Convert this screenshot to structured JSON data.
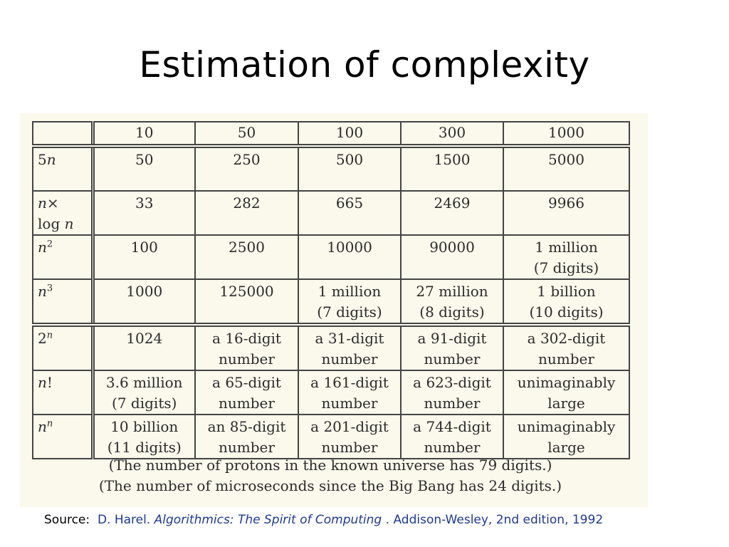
{
  "title": "Estimation of complexity",
  "table": {
    "header": [
      "10",
      "50",
      "100",
      "300",
      "1000"
    ],
    "rows": [
      {
        "label_html": "5<span class=\"ital\">n</span>",
        "cells": [
          [
            "50"
          ],
          [
            "250"
          ],
          [
            "500"
          ],
          [
            "1500"
          ],
          [
            "5000"
          ]
        ]
      },
      {
        "label_html": "<span class=\"ital\">n</span>×<br>log <span class=\"ital\">n</span>",
        "cells": [
          [
            "33"
          ],
          [
            "282"
          ],
          [
            "665"
          ],
          [
            "2469"
          ],
          [
            "9966"
          ]
        ]
      },
      {
        "label_html": "<span class=\"ital\">n</span><sup>2</sup>",
        "cells": [
          [
            "100"
          ],
          [
            "2500"
          ],
          [
            "10000"
          ],
          [
            "90000"
          ],
          [
            "1 million",
            "(7 digits)"
          ]
        ]
      },
      {
        "label_html": "<span class=\"ital\">n</span><sup>3</sup>",
        "cells": [
          [
            "1000"
          ],
          [
            "125000"
          ],
          [
            "1 million",
            "(7 digits)"
          ],
          [
            "27 million",
            "(8 digits)"
          ],
          [
            "1 billion",
            "(10 digits)"
          ]
        ]
      },
      {
        "label_html": "2<sup class=\"ital\">n</sup>",
        "cells": [
          [
            "1024"
          ],
          [
            "a 16-digit",
            "number"
          ],
          [
            "a 31-digit",
            "number"
          ],
          [
            "a 91-digit",
            "number"
          ],
          [
            "a 302-digit",
            "number"
          ]
        ]
      },
      {
        "label_html": "<span class=\"ital\">n</span>!",
        "cells": [
          [
            "3.6 million",
            "(7 digits)"
          ],
          [
            "a 65-digit",
            "number"
          ],
          [
            "a 161-digit",
            "number"
          ],
          [
            "a 623-digit",
            "number"
          ],
          [
            "unimaginably",
            "large"
          ]
        ]
      },
      {
        "label_html": "<span class=\"ital\">n</span><sup class=\"ital\">n</sup>",
        "cells": [
          [
            "10 billion",
            "(11 digits)"
          ],
          [
            "an 85-digit",
            "number"
          ],
          [
            "a 201-digit",
            "number"
          ],
          [
            "a 744-digit",
            "number"
          ],
          [
            "unimaginably",
            "large"
          ]
        ]
      }
    ]
  },
  "notes": [
    "(The number of protons in the known universe has 79 digits.)",
    "(The number of microseconds since the Big Bang has 24 digits.)"
  ],
  "source": {
    "label": "Source:",
    "author": "D. Harel.",
    "book_title": "Algorithmics: The Spirit of Computing",
    "publisher": ". Addison-Wesley, 2nd edition, 1992"
  }
}
